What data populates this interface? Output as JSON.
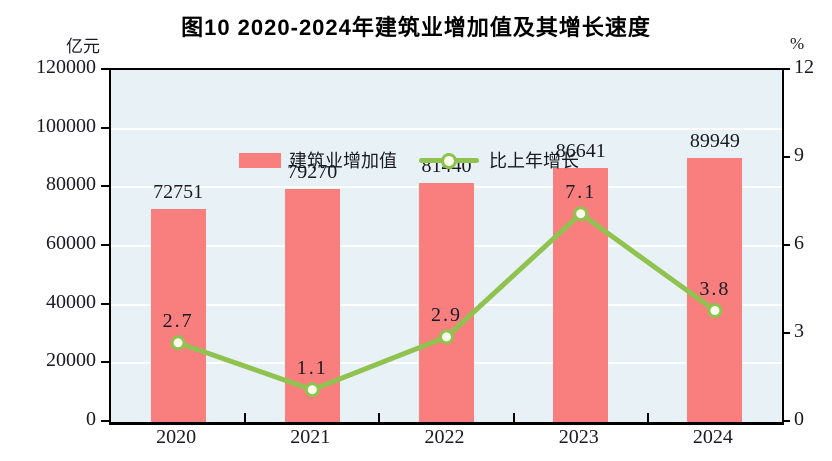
{
  "title": "图10  2020-2024年建筑业增加值及其增长速度",
  "axis_units": {
    "left": "亿元",
    "right": "%"
  },
  "legend": {
    "bar_label": "建筑业增加值",
    "line_label": "比上年增长"
  },
  "colors": {
    "bar": "#F97F7F",
    "line": "#8FC24E",
    "marker_fill": "#FDFDEE",
    "plot_background": "#E8F1F6",
    "gridline": "#FFFFFF",
    "axis": "#000000"
  },
  "chart_data": {
    "type": "bar",
    "subtype": "bar+line dual axis",
    "title": "图10  2020-2024年建筑业增加值及其增长速度",
    "categories": [
      "2020",
      "2021",
      "2022",
      "2023",
      "2024"
    ],
    "series": [
      {
        "name": "建筑业增加值",
        "type": "bar",
        "axis": "left",
        "unit": "亿元",
        "values": [
          72751,
          79270,
          81440,
          86641,
          89949
        ],
        "labels": [
          "72751",
          "79270",
          "81440",
          "86641",
          "89949"
        ],
        "color": "#F97F7F"
      },
      {
        "name": "比上年增长",
        "type": "line",
        "axis": "right",
        "unit": "%",
        "values": [
          2.7,
          1.1,
          2.9,
          7.1,
          3.8
        ],
        "labels": [
          "2.7",
          "1.1",
          "2.9",
          "7.1",
          "3.8"
        ],
        "color": "#8FC24E"
      }
    ],
    "ylim_left": [
      0,
      120000
    ],
    "yticks_left": [
      0,
      20000,
      40000,
      60000,
      80000,
      100000,
      120000
    ],
    "ytick_labels_left": [
      "0",
      "20000",
      "40000",
      "60000",
      "80000",
      "100000",
      "120000"
    ],
    "ylim_right": [
      0,
      12
    ],
    "yticks_right": [
      0,
      3,
      6,
      9,
      12
    ],
    "ytick_labels_right": [
      "0",
      "3",
      "6",
      "9",
      "12"
    ],
    "grid": "horizontal white gridlines every 20000 (left axis)",
    "legend_position": "top-left inside plot area"
  }
}
